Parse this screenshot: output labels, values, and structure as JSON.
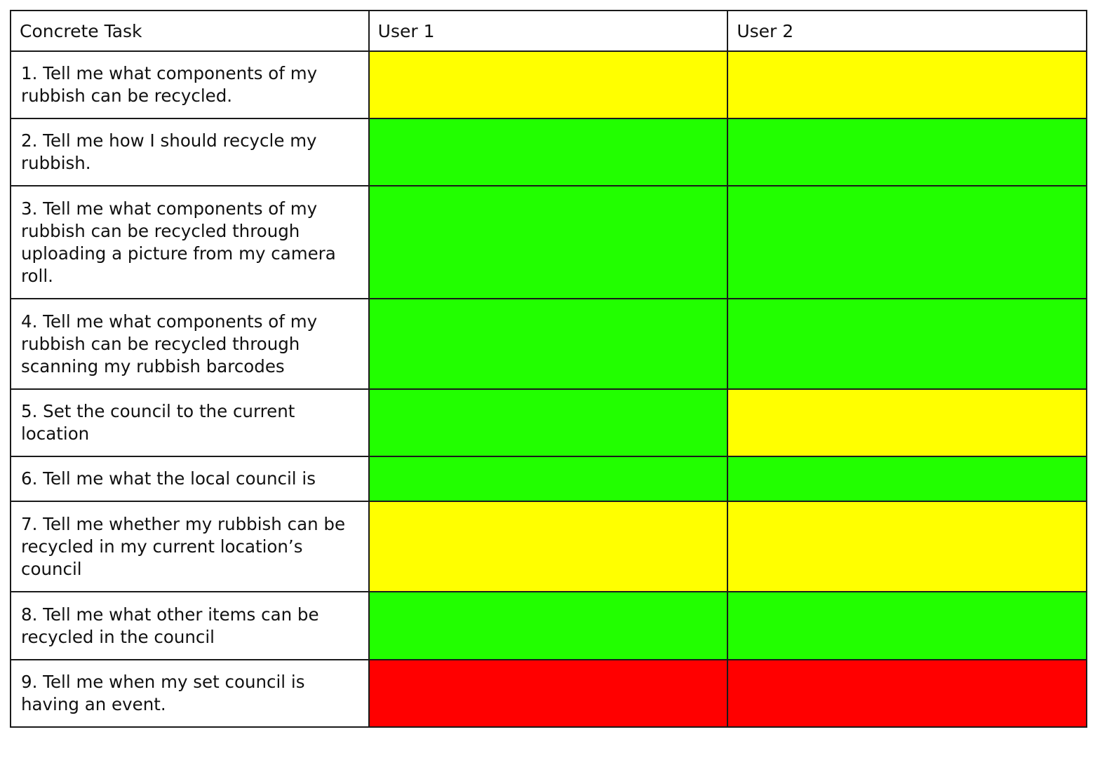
{
  "colors": {
    "success": "#22ff00",
    "partial": "#ffff00",
    "fail": "#ff0000"
  },
  "header": {
    "task": "Concrete Task",
    "user1": "User 1",
    "user2": "User 2"
  },
  "rows": [
    {
      "task": "1. Tell me what components of my rubbish can be recycled.",
      "user1": "partial",
      "user2": "partial"
    },
    {
      "task": "2. Tell me how I should recycle my rubbish.",
      "user1": "success",
      "user2": "success"
    },
    {
      "task": "3. Tell me what components of my rubbish can be recycled through uploading a picture from my camera roll.",
      "user1": "success",
      "user2": "success"
    },
    {
      "task": "4. Tell me what components of my rubbish can be recycled through scanning my rubbish barcodes",
      "user1": "success",
      "user2": "success"
    },
    {
      "task": "5. Set the council to the current location",
      "user1": "success",
      "user2": "partial"
    },
    {
      "task": "6. Tell me what the local council is",
      "user1": "success",
      "user2": "success"
    },
    {
      "task": "7. Tell me whether my rubbish can be recycled in my current location’s council",
      "user1": "partial",
      "user2": "partial"
    },
    {
      "task": "8. Tell me what other items can be recycled in the council",
      "user1": "success",
      "user2": "success"
    },
    {
      "task": "9. Tell me when my set council is having an event.",
      "user1": "fail",
      "user2": "fail"
    }
  ]
}
